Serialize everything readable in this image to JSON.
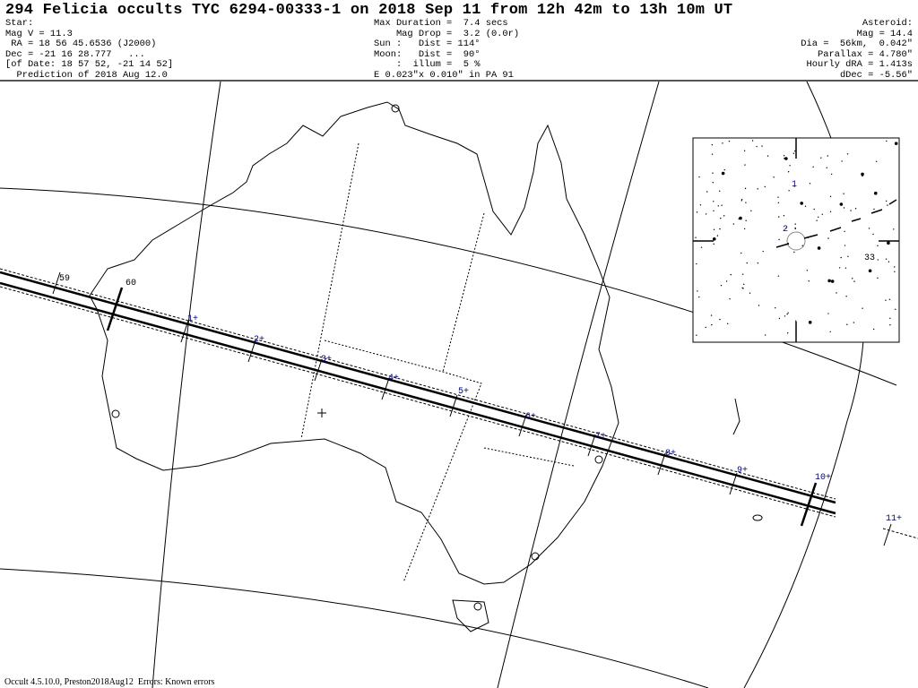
{
  "header": {
    "title": "294 Felicia occults TYC 6294-00333-1 on 2018 Sep 11 from 12h 42m to 13h 10m UT",
    "star": [
      "Star:",
      "Mag V = 11.3",
      " RA = 18 56 45.6536 (J2000)",
      "Dec = -21 16 28.777   ...",
      "[of Date: 18 57 52, -21 14 52]",
      "  Prediction of 2018 Aug 12.0"
    ],
    "event": [
      "Max Duration =  7.4 secs",
      "    Mag Drop =  3.2 (0.0r)",
      "Sun :   Dist = 114°",
      "Moon:   Dist =  90°",
      "    :  illum =  5 %",
      "E 0.023\"x 0.010\" in PA 91"
    ],
    "asteroid": [
      "Asteroid:",
      "Mag = 14.4",
      "Dia =  56km,  0.042\"",
      "Parallax = 4.780\"",
      "Hourly dRA = 1.413s",
      "dDec = -5.56\""
    ]
  },
  "map": {
    "time_labels": [
      "59",
      "60",
      "1+",
      "2+",
      "3+",
      "4+",
      "5+",
      "6+",
      "7+",
      "8+",
      "9+",
      "10+",
      "11+"
    ],
    "path_color": "#000000",
    "tick_label_color": "#000080"
  },
  "inset": {
    "labels": [
      "1",
      "2",
      "33"
    ]
  },
  "footer": "Occult 4.5.10.0, Preston2018Aug12  Errors: Known errors"
}
